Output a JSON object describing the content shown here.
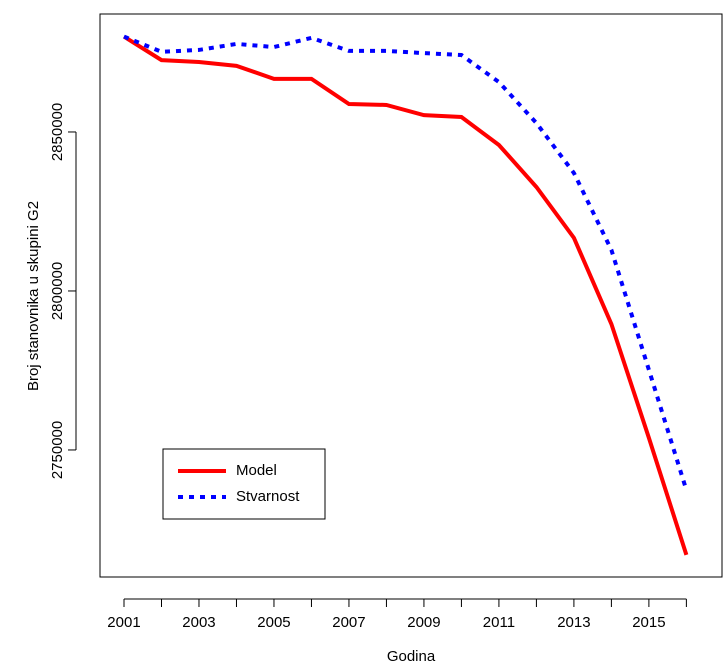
{
  "chart_data": {
    "type": "line",
    "x_label": "Godina",
    "y_label": "Broj stanovnika u skupini G2",
    "x": [
      2001,
      2002,
      2003,
      2004,
      2005,
      2006,
      2007,
      2008,
      2009,
      2010,
      2011,
      2012,
      2013,
      2014,
      2015,
      2016
    ],
    "series": [
      {
        "name": "Model",
        "color": "#ff0000",
        "dash": "solid",
        "values": [
          2880000,
          2872600,
          2872000,
          2870800,
          2866700,
          2866700,
          2858800,
          2858500,
          2855300,
          2854700,
          2845900,
          2832700,
          2816700,
          2789600,
          2753800,
          2717000
        ]
      },
      {
        "name": "Stvarnost",
        "color": "#0000ff",
        "dash": "dotted",
        "values": [
          2880000,
          2875200,
          2875800,
          2877700,
          2876700,
          2879600,
          2875500,
          2875500,
          2874800,
          2874200,
          2865700,
          2852800,
          2837100,
          2812900,
          2775200,
          2737400
        ]
      }
    ],
    "xlim": [
      2000.36,
      2016.95
    ],
    "ylim": [
      2710050,
      2887100
    ],
    "xticks": [
      2001,
      2003,
      2005,
      2007,
      2009,
      2011,
      2013,
      2015
    ],
    "xticks_minor": [
      2002,
      2004,
      2006,
      2008,
      2010,
      2012,
      2014,
      2016
    ],
    "yticks": [
      2750000,
      2800000,
      2850000
    ],
    "legend": "bottom-left"
  }
}
